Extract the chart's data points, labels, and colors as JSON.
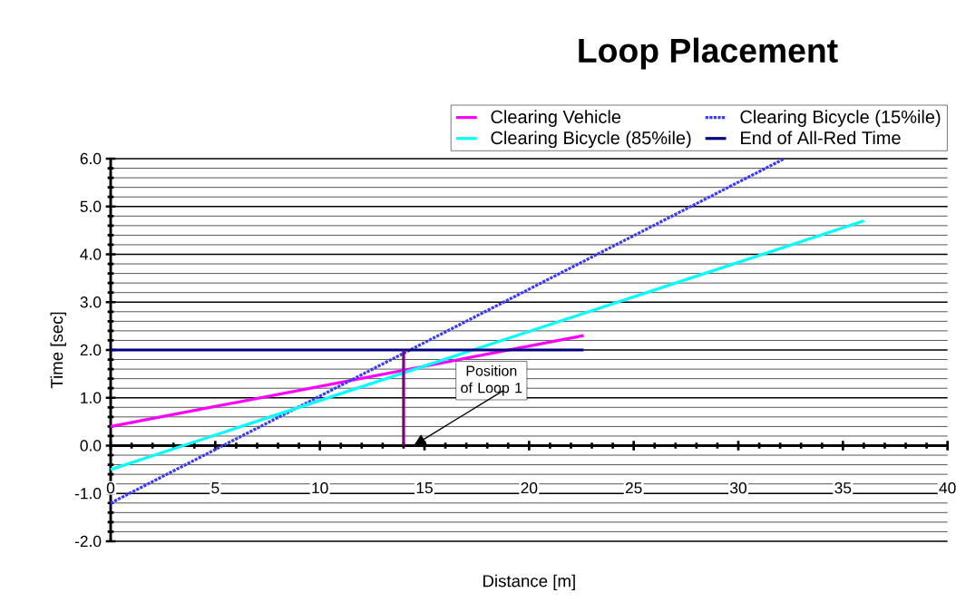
{
  "chart_data": {
    "type": "line",
    "title": "Loop Placement",
    "xlabel": "Distance [m]",
    "ylabel": "Time [sec]",
    "xlim": [
      0,
      40
    ],
    "ylim": [
      -2,
      6
    ],
    "xticks": [
      0,
      5,
      10,
      15,
      20,
      25,
      30,
      35,
      40
    ],
    "yticks": [
      {
        "value": -2,
        "label": "-2.0"
      },
      {
        "value": -1,
        "label": "-1.0"
      },
      {
        "value": 0,
        "label": "0.0"
      },
      {
        "value": 1,
        "label": "1.0"
      },
      {
        "value": 2,
        "label": "2.0"
      },
      {
        "value": 3,
        "label": "3.0"
      },
      {
        "value": 4,
        "label": "4.0"
      },
      {
        "value": 5,
        "label": "5.0"
      },
      {
        "value": 6,
        "label": "6.0"
      }
    ],
    "grid": "y",
    "legend": "top",
    "marker": "none",
    "series": [
      {
        "name": "Clearing Vehicle",
        "color": "#ff00ff",
        "x": [
          0,
          22.6
        ],
        "values": [
          0.4,
          2.3
        ]
      },
      {
        "name": "Clearing Bicycle (15%ile)",
        "color": "#3a3aff",
        "line_style": "dotted",
        "x": [
          0,
          32.2
        ],
        "values": [
          -1.2,
          6.0
        ]
      },
      {
        "name": "Clearing Bicycle (85%ile)",
        "color": "#00ffff",
        "x": [
          0,
          36
        ],
        "values": [
          -0.5,
          4.7
        ]
      },
      {
        "name": "End of All-Red Time",
        "color": "#000080",
        "x": [
          0,
          22.6
        ],
        "values": [
          2,
          2
        ]
      },
      {
        "color": "#800080",
        "x": [
          14,
          14
        ],
        "values": [
          0,
          2
        ]
      }
    ],
    "annotations": [
      "Position of Loop 1"
    ]
  }
}
